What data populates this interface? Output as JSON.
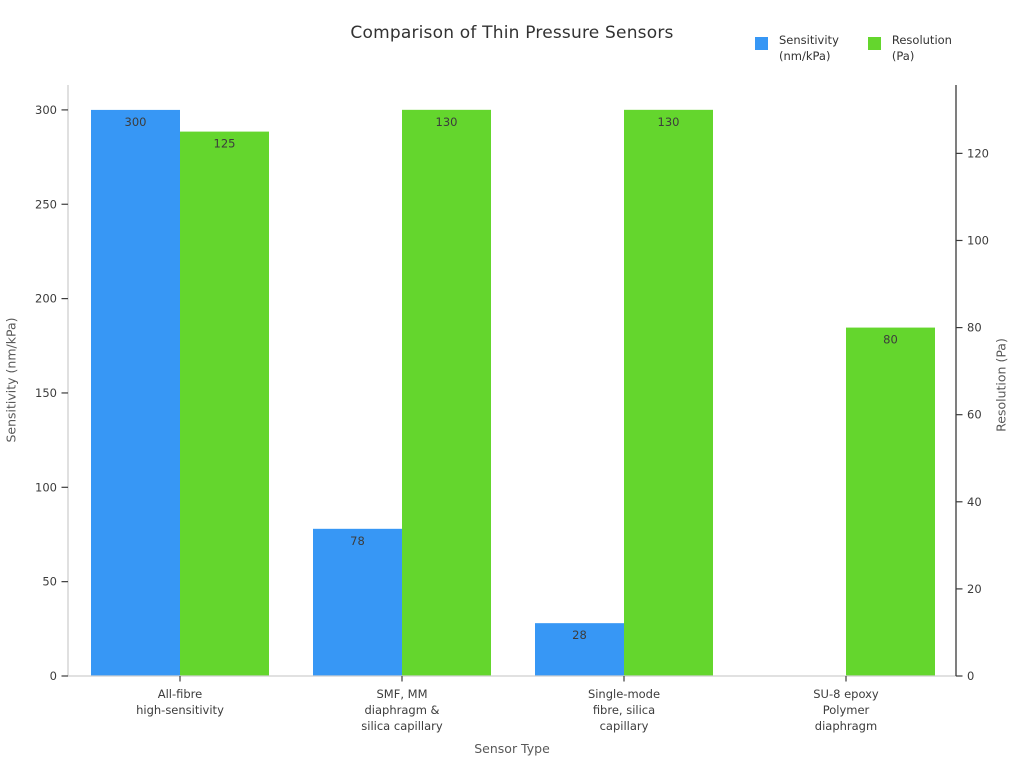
{
  "chart_data": {
    "type": "bar",
    "title": "Comparison of Thin Pressure Sensors",
    "xlabel": "Sensor Type",
    "grid": false,
    "legend_position": "top-right",
    "left_axis": {
      "label": "Sensitivity (nm/kPa)",
      "ticks": [
        0,
        50,
        100,
        150,
        200,
        250,
        300
      ],
      "max": 313.2
    },
    "right_axis": {
      "label": "Resolution (Pa)",
      "ticks": [
        0,
        20,
        40,
        60,
        80,
        100,
        120
      ],
      "max": 135.7
    },
    "categories": [
      [
        "All-fibre",
        "high-sensitivity"
      ],
      [
        "SMF, MM",
        "diaphragm &",
        "silica capillary"
      ],
      [
        "Single-mode",
        "fibre, silica",
        "capillary"
      ],
      [
        "SU-8 epoxy",
        "Polymer",
        "diaphragm"
      ]
    ],
    "series": [
      {
        "name": "Sensitivity (nm/kPa)",
        "legend_lines": [
          "Sensitivity",
          "(nm/kPa)"
        ],
        "axis": "left",
        "color": "#3797f5",
        "values": [
          300,
          78,
          28,
          0
        ],
        "labels": [
          "300",
          "78",
          "28",
          ""
        ]
      },
      {
        "name": "Resolution (Pa)",
        "legend_lines": [
          "Resolution",
          "(Pa)"
        ],
        "axis": "right",
        "color": "#64d62d",
        "values": [
          125,
          130,
          130,
          80
        ],
        "labels": [
          "125",
          "130",
          "130",
          "80"
        ]
      }
    ],
    "colors": {
      "spine_light": "#cfcfcf",
      "spine_dark": "#3a3a3a",
      "tick_text": "#3c3c3c",
      "value_label": "#3c3c3c"
    }
  }
}
